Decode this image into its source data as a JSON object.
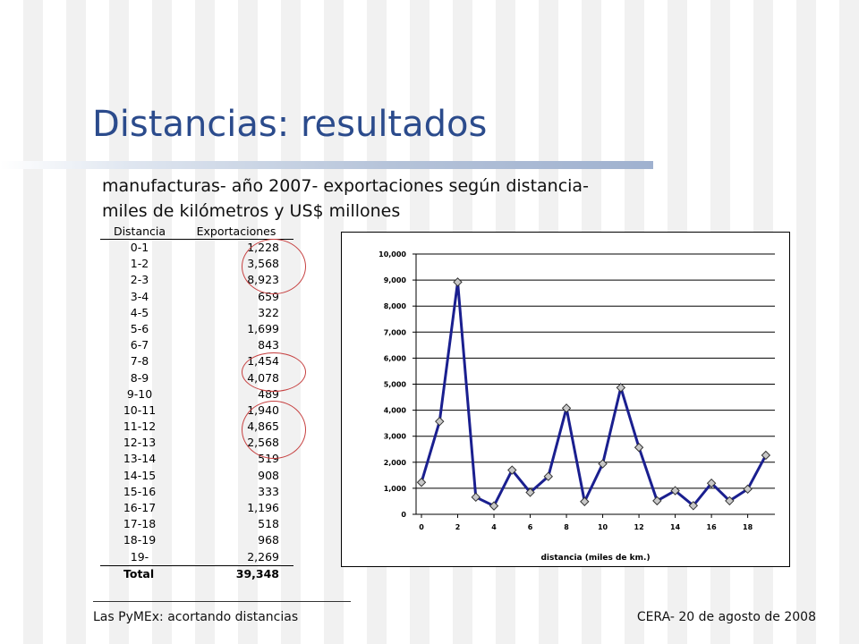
{
  "slide": {
    "title": "Distancias: resultados",
    "subtitle_line1": "manufacturas- año 2007- exportaciones según distancia-",
    "subtitle_line2": "miles de kilómetros y US$ millones"
  },
  "table": {
    "headers": [
      "Distancia",
      "Exportaciones"
    ],
    "rows": [
      {
        "distancia": "0-1",
        "exportaciones": "1,228"
      },
      {
        "distancia": "1-2",
        "exportaciones": "3,568"
      },
      {
        "distancia": "2-3",
        "exportaciones": "8,923"
      },
      {
        "distancia": "3-4",
        "exportaciones": "659"
      },
      {
        "distancia": "4-5",
        "exportaciones": "322"
      },
      {
        "distancia": "5-6",
        "exportaciones": "1,699"
      },
      {
        "distancia": "6-7",
        "exportaciones": "843"
      },
      {
        "distancia": "7-8",
        "exportaciones": "1,454"
      },
      {
        "distancia": "8-9",
        "exportaciones": "4,078"
      },
      {
        "distancia": "9-10",
        "exportaciones": "489"
      },
      {
        "distancia": "10-11",
        "exportaciones": "1,940"
      },
      {
        "distancia": "11-12",
        "exportaciones": "4,865"
      },
      {
        "distancia": "12-13",
        "exportaciones": "2,568"
      },
      {
        "distancia": "13-14",
        "exportaciones": "519"
      },
      {
        "distancia": "14-15",
        "exportaciones": "908"
      },
      {
        "distancia": "15-16",
        "exportaciones": "333"
      },
      {
        "distancia": "16-17",
        "exportaciones": "1,196"
      },
      {
        "distancia": "17-18",
        "exportaciones": "518"
      },
      {
        "distancia": "18-19",
        "exportaciones": "968"
      },
      {
        "distancia": "19-",
        "exportaciones": "2,269"
      }
    ],
    "total_label": "Total",
    "total_value": "39,348",
    "highlight_color": "#c64040"
  },
  "chart_data": {
    "type": "line",
    "title": "",
    "xlabel": "distancia (miles de km.)",
    "ylabel": "",
    "x": [
      0,
      1,
      2,
      3,
      4,
      5,
      6,
      7,
      8,
      9,
      10,
      11,
      12,
      13,
      14,
      15,
      16,
      17,
      18,
      19
    ],
    "values": [
      1228,
      3568,
      8923,
      659,
      322,
      1699,
      843,
      1454,
      4078,
      489,
      1940,
      4865,
      2568,
      519,
      908,
      333,
      1196,
      518,
      968,
      2269
    ],
    "xlim": [
      0,
      19.5
    ],
    "ylim": [
      0,
      10000
    ],
    "x_ticks": [
      "0",
      "2",
      "4",
      "6",
      "8",
      "10",
      "12",
      "14",
      "16",
      "18"
    ],
    "y_ticks": [
      "0",
      "1,000",
      "2,000",
      "3,000",
      "4,000",
      "5,000",
      "6,000",
      "7,000",
      "8,000",
      "9,000",
      "10,000"
    ],
    "grid": "horizontal",
    "legend": "none",
    "line_color": "#1a1f8f",
    "marker_color": "#c8c8c8"
  },
  "footer": {
    "left": "Las PyMEx: acortando distancias",
    "right": "CERA- 20 de agosto de 2008"
  },
  "colors": {
    "title": "#2b4b8c",
    "title_bar": "#9fb1cf"
  }
}
